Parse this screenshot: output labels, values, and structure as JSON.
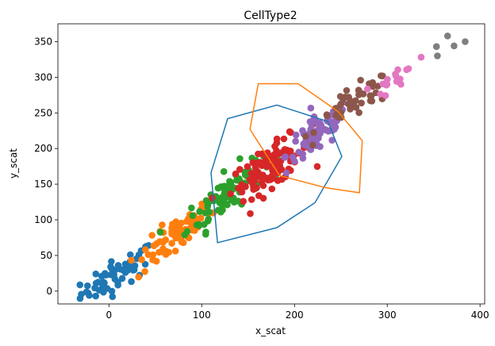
{
  "chart_data": {
    "type": "scatter",
    "title": "CellType2",
    "xlabel": "x_scat",
    "ylabel": "y_scat",
    "xlim": [
      -55,
      405
    ],
    "ylim": [
      -18,
      375
    ],
    "xticks": [
      0,
      100,
      200,
      300,
      400
    ],
    "yticks": [
      0,
      50,
      100,
      150,
      200,
      250,
      300,
      350
    ],
    "grid": false,
    "legend": false,
    "series": [
      {
        "color": "#1f77b4",
        "cluster": {
          "n": 60,
          "cx": 10,
          "cy": 25,
          "sx": 20,
          "sy": 18,
          "r": 0.8
        }
      },
      {
        "color": "#ff7f0e",
        "cluster": {
          "n": 75,
          "cx": 70,
          "cy": 75,
          "sx": 20,
          "sy": 23,
          "r": 0.85
        }
      },
      {
        "color": "#2ca02c",
        "cluster": {
          "n": 90,
          "cx": 125,
          "cy": 135,
          "sx": 20,
          "sy": 25,
          "r": 0.8
        }
      },
      {
        "color": "#d62728",
        "cluster": {
          "n": 100,
          "cx": 175,
          "cy": 175,
          "sx": 22,
          "sy": 22,
          "r": 0.75
        }
      },
      {
        "color": "#9467bd",
        "cluster": {
          "n": 80,
          "cx": 225,
          "cy": 220,
          "sx": 17,
          "sy": 20,
          "r": 0.75
        }
      },
      {
        "color": "#8c564b",
        "cluster": {
          "n": 45,
          "cx": 265,
          "cy": 265,
          "sx": 20,
          "sy": 18,
          "r": 0.8
        }
      },
      {
        "color": "#e377c2",
        "cluster": {
          "n": 17,
          "cx": 310,
          "cy": 300,
          "sx": 11,
          "sy": 13,
          "r": 0.7
        }
      },
      {
        "color": "#7f7f7f",
        "points": [
          [
            354,
            330
          ],
          [
            353,
            343
          ],
          [
            365,
            358
          ],
          [
            372,
            344
          ],
          [
            384,
            350
          ]
        ]
      }
    ],
    "hulls": [
      {
        "color": "#1f77b4",
        "points": [
          [
            110,
            166
          ],
          [
            128,
            242
          ],
          [
            181,
            261
          ],
          [
            236,
            238
          ],
          [
            251,
            189
          ],
          [
            222,
            124
          ],
          [
            181,
            89
          ],
          [
            117,
            68
          ]
        ]
      },
      {
        "color": "#ff7f0e",
        "points": [
          [
            152,
            227
          ],
          [
            161,
            291
          ],
          [
            204,
            291
          ],
          [
            247,
            252
          ],
          [
            273,
            211
          ],
          [
            270,
            138
          ],
          [
            234,
            145
          ],
          [
            184,
            162
          ]
        ]
      }
    ]
  }
}
